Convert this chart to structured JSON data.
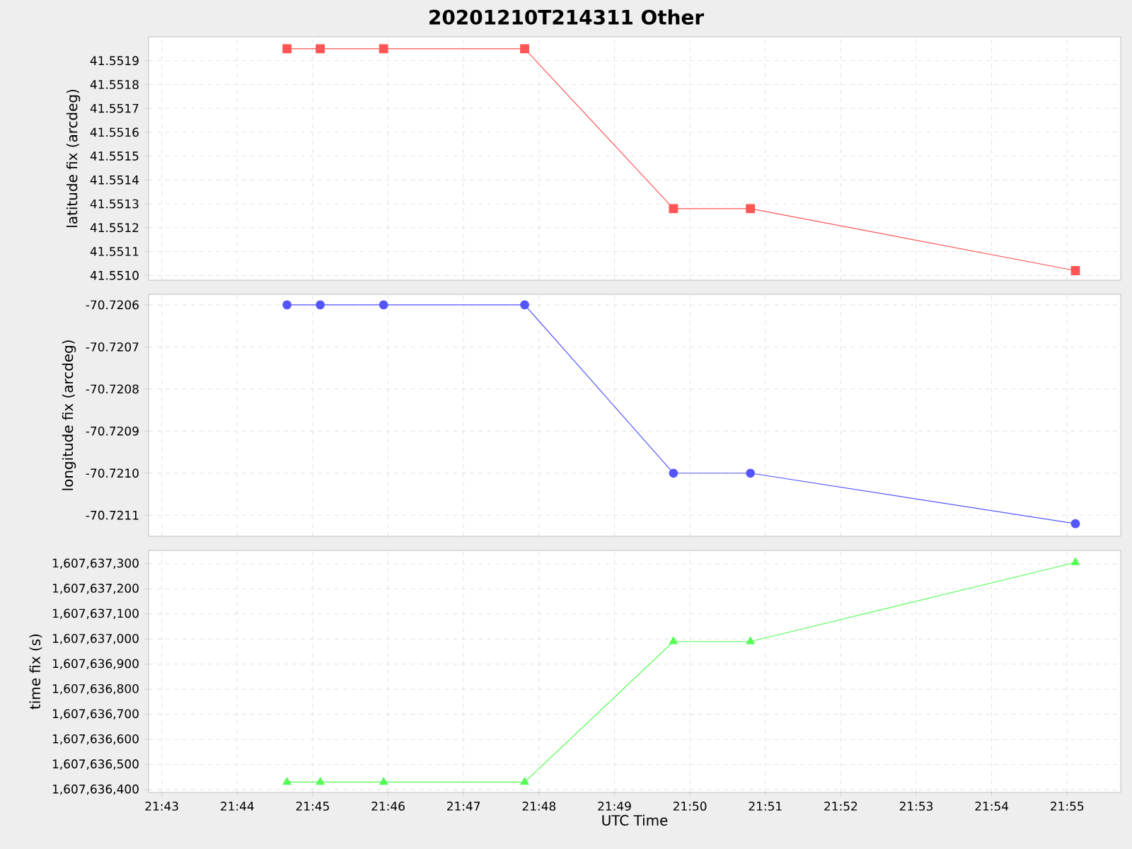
{
  "chart_data": [
    {
      "type": "line",
      "title": "20201210T214311 Other",
      "ylabel": "latitude fix (arcdeg)",
      "x": [
        21.74433,
        21.75167,
        21.76567,
        21.79683,
        21.8297,
        21.8467,
        21.9185
      ],
      "series": [
        {
          "color": "#ff5555",
          "values": [
            41.55195,
            41.55195,
            41.55195,
            41.55195,
            41.55128,
            41.55128,
            41.55102
          ]
        }
      ],
      "xlim": [
        21.71375,
        21.9285
      ],
      "xticks": [
        {
          "value": 21.716667,
          "label": null
        },
        {
          "value": 21.733333,
          "label": null
        },
        {
          "value": 21.75,
          "label": null
        },
        {
          "value": 21.766667,
          "label": null
        },
        {
          "value": 21.783333,
          "label": null
        },
        {
          "value": 21.8,
          "label": null
        },
        {
          "value": 21.816667,
          "label": null
        },
        {
          "value": 21.833333,
          "label": null
        },
        {
          "value": 21.85,
          "label": null
        },
        {
          "value": 21.866667,
          "label": null
        },
        {
          "value": 21.883333,
          "label": null
        },
        {
          "value": 21.9,
          "label": null
        },
        {
          "value": 21.916667,
          "label": null
        }
      ],
      "ylim": [
        41.55098,
        41.552
      ],
      "yticks": [
        {
          "value": 41.551,
          "label": "41.5510"
        },
        41.5511,
        41.5512,
        41.5513,
        41.5514,
        41.5515,
        41.5516,
        41.5517,
        41.5518,
        41.5519
      ],
      "grid": true,
      "marker": "square",
      "line_style": "solid",
      "tick_labels": "y"
    },
    {
      "type": "line",
      "ylabel": "longitude fix (arcdeg)",
      "x": [
        21.74433,
        21.75167,
        21.76567,
        21.79683,
        21.8297,
        21.8467,
        21.9185
      ],
      "series": [
        {
          "color": "#5555ff",
          "values": [
            -70.7206,
            -70.7206,
            -70.7206,
            -70.7206,
            -70.721,
            -70.721,
            -70.72112
          ]
        }
      ],
      "xlim": [
        21.71375,
        21.9285
      ],
      "xticks": [
        {
          "value": 21.716667,
          "label": null
        },
        {
          "value": 21.733333,
          "label": null
        },
        {
          "value": 21.75,
          "label": null
        },
        {
          "value": 21.766667,
          "label": null
        },
        {
          "value": 21.783333,
          "label": null
        },
        {
          "value": 21.8,
          "label": null
        },
        {
          "value": 21.816667,
          "label": null
        },
        {
          "value": 21.833333,
          "label": null
        },
        {
          "value": 21.85,
          "label": null
        },
        {
          "value": 21.866667,
          "label": null
        },
        {
          "value": 21.883333,
          "label": null
        },
        {
          "value": 21.9,
          "label": null
        },
        {
          "value": 21.916667,
          "label": null
        }
      ],
      "ylim": [
        -70.72115,
        -70.720575
      ],
      "yticks": [
        {
          "value": -70.7211,
          "label": "-70.7211"
        },
        {
          "value": -70.721,
          "label": "-70.7210"
        },
        {
          "value": -70.7209,
          "label": "-70.7209"
        },
        {
          "value": -70.7208,
          "label": "-70.7208"
        },
        {
          "value": -70.7207,
          "label": "-70.7207"
        },
        {
          "value": -70.7206,
          "label": "-70.7206"
        }
      ],
      "grid": true,
      "marker": "circle",
      "line_style": "solid",
      "tick_labels": "y"
    },
    {
      "type": "line",
      "xlabel": "UTC Time",
      "ylabel": "time fix (s)",
      "x": [
        21.74433,
        21.75167,
        21.76567,
        21.79683,
        21.8297,
        21.8467,
        21.9185
      ],
      "series": [
        {
          "color": "#55ff55",
          "values": [
            1607636430,
            1607636430,
            1607636430,
            1607636430,
            1607636990,
            1607636990,
            1607637305
          ]
        }
      ],
      "xlim": [
        21.71375,
        21.9285
      ],
      "xticks": [
        {
          "value": 21.716667,
          "label": "21:43"
        },
        {
          "value": 21.733333,
          "label": "21:44"
        },
        {
          "value": 21.75,
          "label": "21:45"
        },
        {
          "value": 21.766667,
          "label": "21:46"
        },
        {
          "value": 21.783333,
          "label": "21:47"
        },
        {
          "value": 21.8,
          "label": "21:48"
        },
        {
          "value": 21.816667,
          "label": "21:49"
        },
        {
          "value": 21.833333,
          "label": "21:50"
        },
        {
          "value": 21.85,
          "label": "21:51"
        },
        {
          "value": 21.866667,
          "label": "21:52"
        },
        {
          "value": 21.883333,
          "label": "21:53"
        },
        {
          "value": 21.9,
          "label": "21:54"
        },
        {
          "value": 21.916667,
          "label": "21:55"
        }
      ],
      "ylim": [
        1607636389,
        1607637353
      ],
      "yticks": [
        {
          "value": 1607636400,
          "label": "1,607,636,400"
        },
        {
          "value": 1607636500,
          "label": "1,607,636,500"
        },
        {
          "value": 1607636600,
          "label": "1,607,636,600"
        },
        {
          "value": 1607636700,
          "label": "1,607,636,700"
        },
        {
          "value": 1607636800,
          "label": "1,607,636,800"
        },
        {
          "value": 1607636900,
          "label": "1,607,636,900"
        },
        {
          "value": 1607637000,
          "label": "1,607,637,000"
        },
        {
          "value": 1607637100,
          "label": "1,607,637,100"
        },
        {
          "value": 1607637200,
          "label": "1,607,637,200"
        },
        {
          "value": 1607637300,
          "label": "1,607,637,300"
        }
      ],
      "grid": true,
      "marker": "triangle",
      "line_style": "solid"
    }
  ]
}
